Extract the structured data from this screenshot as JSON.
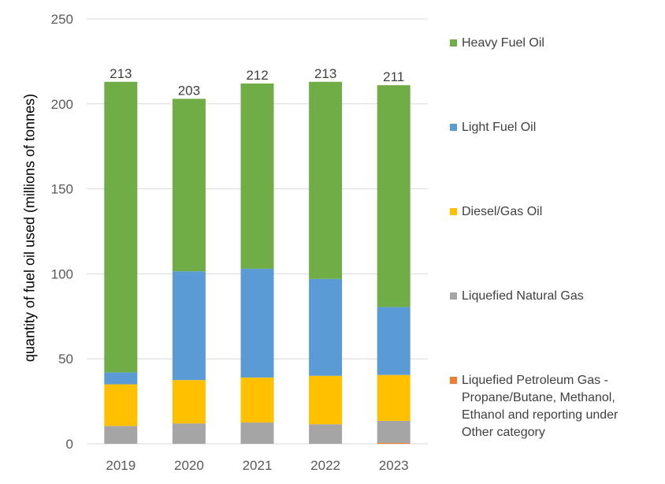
{
  "chart_data": {
    "type": "bar",
    "stacked": true,
    "categories": [
      "2019",
      "2020",
      "2021",
      "2022",
      "2023"
    ],
    "series": [
      {
        "name": "Liquefied Petroleum Gas - Propane/Butane, Methanol, Ethanol and reporting under Other category",
        "color": "#ED7D31",
        "values": [
          0,
          0,
          0,
          0,
          0.5
        ]
      },
      {
        "name": "Liquefied Natural Gas",
        "color": "#A5A5A5",
        "values": [
          10.5,
          12,
          12.5,
          11.5,
          13
        ]
      },
      {
        "name": "Diesel/Gas Oil",
        "color": "#FFC000",
        "values": [
          24.5,
          25.5,
          26.5,
          28.5,
          27
        ]
      },
      {
        "name": "Light Fuel Oil",
        "color": "#5B9BD5",
        "values": [
          7,
          64,
          64,
          57,
          40
        ]
      },
      {
        "name": "Heavy Fuel Oil",
        "color": "#70AD47",
        "values": [
          171,
          101.5,
          109,
          116,
          130.5
        ]
      }
    ],
    "totals": [
      213,
      203,
      212,
      213,
      211
    ],
    "total_labels": [
      "213",
      "203",
      "212",
      "213",
      "211"
    ],
    "ylabel": "quantity of fuel oil used (millions of tonnes)",
    "xlabel": "",
    "ylim": [
      0,
      250
    ],
    "yticks": [
      0,
      50,
      100,
      150,
      200,
      250
    ],
    "ytick_labels": [
      "0",
      "50",
      "100",
      "150",
      "200",
      "250"
    ],
    "grid": true,
    "legend_position": "right",
    "legend_order": [
      "Heavy Fuel Oil",
      "Light Fuel Oil",
      "Diesel/Gas Oil",
      "Liquefied Natural Gas",
      "Liquefied Petroleum Gas - Propane/Butane, Methanol, Ethanol and reporting under Other category"
    ],
    "legend_lines": {
      "Heavy Fuel Oil": [
        "Heavy Fuel Oil"
      ],
      "Light Fuel Oil": [
        "Light Fuel Oil"
      ],
      "Diesel/Gas Oil": [
        "Diesel/Gas Oil"
      ],
      "Liquefied Natural Gas": [
        "Liquefied Natural Gas"
      ],
      "Liquefied Petroleum Gas - Propane/Butane, Methanol, Ethanol and reporting under Other category": [
        "Liquefied Petroleum Gas -",
        "Propane/Butane, Methanol,",
        "Ethanol and reporting under",
        "Other category"
      ]
    }
  }
}
